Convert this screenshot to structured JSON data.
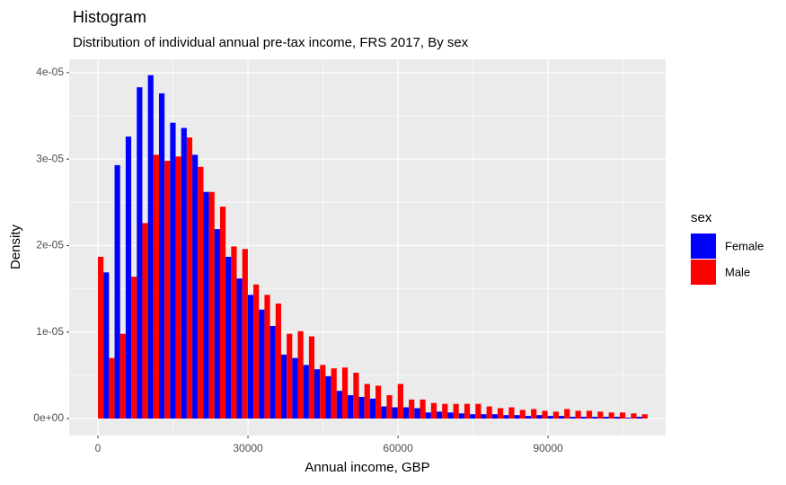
{
  "chart_data": {
    "type": "histogram",
    "title": "Histogram",
    "subtitle": "Distribution of individual annual pre-tax income, FRS 2017, By sex",
    "x_label": "Annual income, GBP",
    "y_label": "Density",
    "legend_title": "sex",
    "legend_position": "right",
    "grid": true,
    "bins": [
      -1110,
      1110,
      3330,
      5550,
      7770,
      9990,
      12210,
      14430,
      16650,
      18870,
      21090,
      23310,
      25530,
      27750,
      29970,
      32190,
      34410,
      36630,
      38850,
      41070,
      43290,
      45510,
      47730,
      49950,
      52170,
      54390,
      56610,
      58830,
      61050,
      63270,
      65490,
      67710,
      69930,
      72150,
      74370,
      76590,
      78810,
      81030,
      83250,
      85470,
      87690,
      89910,
      92130,
      94350,
      96570,
      98790,
      101010,
      103230,
      105450,
      107670,
      109890
    ],
    "series": [
      {
        "name": "Female",
        "color": "#0000ff",
        "values": [
          0,
          1.69e-05,
          2.93e-05,
          3.26e-05,
          3.83e-05,
          3.97e-05,
          3.76e-05,
          3.42e-05,
          3.36e-05,
          3.05e-05,
          2.62e-05,
          2.19e-05,
          1.87e-05,
          1.62e-05,
          1.43e-05,
          1.26e-05,
          1.07e-05,
          7.4e-06,
          7e-06,
          6.2e-06,
          5.7e-06,
          4.9e-06,
          3.2e-06,
          2.7e-06,
          2.5e-06,
          2.3e-06,
          1.4e-06,
          1.3e-06,
          1.3e-06,
          1.2e-06,
          7e-07,
          8e-07,
          7e-07,
          6e-07,
          5e-07,
          5e-07,
          5e-07,
          4e-07,
          4e-07,
          3e-07,
          4e-07,
          3e-07,
          3e-07,
          2e-07,
          2e-07,
          2e-07,
          2e-07,
          2e-07,
          1e-07,
          2e-07
        ]
      },
      {
        "name": "Male",
        "color": "#ff0000",
        "values": [
          1.87e-05,
          7e-06,
          9.8e-06,
          1.64e-05,
          2.26e-05,
          3.05e-05,
          2.98e-05,
          3.03e-05,
          3.25e-05,
          2.91e-05,
          2.62e-05,
          2.45e-05,
          1.99e-05,
          1.96e-05,
          1.55e-05,
          1.43e-05,
          1.33e-05,
          9.8e-06,
          1.01e-05,
          9.5e-06,
          6.2e-06,
          5.8e-06,
          5.9e-06,
          5.3e-06,
          4e-06,
          3.8e-06,
          2.7e-06,
          4e-06,
          2.2e-06,
          2.2e-06,
          1.8e-06,
          1.7e-06,
          1.7e-06,
          1.7e-06,
          1.7e-06,
          1.4e-06,
          1.2e-06,
          1.3e-06,
          1e-06,
          1.1e-06,
          9e-07,
          8e-07,
          1.1e-06,
          9e-07,
          9e-07,
          8e-07,
          7e-07,
          7e-07,
          6e-07,
          5e-07
        ]
      }
    ],
    "xlim": [
      -5750,
      113500
    ],
    "ylim": [
      -1.97e-06,
      4.154e-05
    ],
    "xticks": [
      0,
      30000,
      60000,
      90000
    ],
    "yticks": [
      {
        "value": 0,
        "label": "0e+00"
      },
      {
        "value": 1e-05,
        "label": "1e-05"
      },
      {
        "value": 2e-05,
        "label": "2e-05"
      },
      {
        "value": 3e-05,
        "label": "3e-05"
      },
      {
        "value": 4e-05,
        "label": "4e-05"
      }
    ]
  }
}
